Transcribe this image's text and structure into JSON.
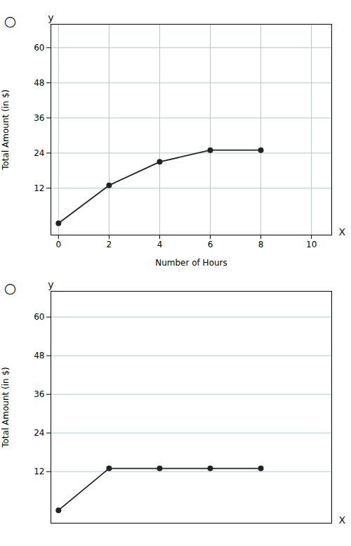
{
  "chart_data": [
    {
      "type": "line",
      "x": [
        0,
        2,
        4,
        6,
        8
      ],
      "values": [
        0,
        13,
        21,
        25,
        25
      ],
      "xlabel": "Number of Hours",
      "ylabel": "Total Amount (in $)",
      "xlim": [
        -0.3,
        10.8
      ],
      "ylim": [
        -4,
        68
      ],
      "xticks": [
        0,
        2,
        4,
        6,
        8,
        10
      ],
      "yticks": [
        12,
        24,
        36,
        48,
        60
      ],
      "grid": true,
      "marker": "circle",
      "color": "#222222",
      "annotations": [
        {
          "text": "X"
        },
        {
          "text": "y"
        },
        {
          "text": "○"
        }
      ]
    },
    {
      "type": "line",
      "x": [
        0,
        2,
        4,
        6,
        8
      ],
      "values": [
        0,
        13,
        13,
        13,
        13
      ],
      "ylabel": "Total Amount (in $)",
      "xlim": [
        -0.3,
        10.8
      ],
      "ylim": [
        -4,
        68
      ],
      "yticks": [
        12,
        24,
        36,
        48,
        60
      ],
      "grid": true,
      "tick_labels": "y",
      "marker": "circle",
      "color": "#222222",
      "annotations": [
        {
          "text": "X"
        },
        {
          "text": "y"
        },
        {
          "text": "○"
        }
      ]
    }
  ]
}
